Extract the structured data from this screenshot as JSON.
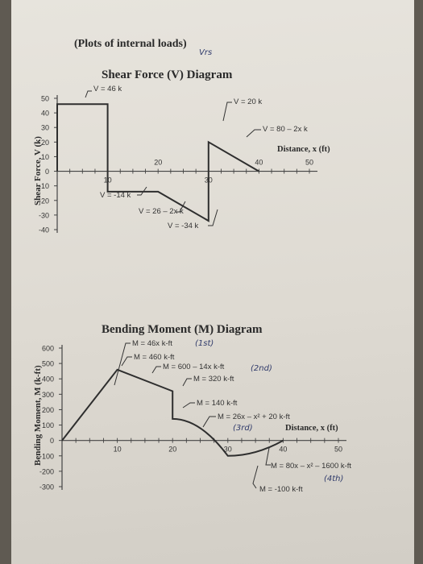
{
  "page": {
    "heading": "(Plots of internal loads)",
    "heading_note": "Vrs",
    "bg_color": "#e4e1da",
    "ink_color": "#333333"
  },
  "shear": {
    "title": "Shear Force (V) Diagram",
    "ylabel": "Shear Force, V (k)",
    "xlabel": "Distance, x (ft)",
    "y_ticks": [
      "50",
      "40",
      "30",
      "20",
      "10",
      "0",
      "-10",
      "-20",
      "-30",
      "-40"
    ],
    "x_ticks": [
      "10",
      "20",
      "30",
      "40",
      "50"
    ],
    "annotations": [
      {
        "key": "v46",
        "text": "V = 46 k"
      },
      {
        "key": "v20",
        "text": "V = 20 k"
      },
      {
        "key": "v80",
        "text": "V = 80 – 2x k"
      },
      {
        "key": "vm14",
        "text": "V = -14 k"
      },
      {
        "key": "v26",
        "text": "V = 26 – 2x k"
      },
      {
        "key": "vm34",
        "text": "V = -34 k"
      }
    ]
  },
  "moment": {
    "title": "Bending Moment (M) Diagram",
    "ylabel": "Bending Moment, M (k-ft)",
    "xlabel": "Distance, x (ft)",
    "y_ticks": [
      "600",
      "500",
      "400",
      "300",
      "200",
      "100",
      "0",
      "-100",
      "-200",
      "-300"
    ],
    "x_ticks": [
      "10",
      "20",
      "30",
      "40",
      "50"
    ],
    "annotations": [
      {
        "key": "m46x",
        "text": "M = 46x k-ft"
      },
      {
        "key": "m460",
        "text": "M = 460 k-ft"
      },
      {
        "key": "m600",
        "text": "M = 600 – 14x k-ft"
      },
      {
        "key": "m320",
        "text": "M = 320 k-ft"
      },
      {
        "key": "m140",
        "text": "M = 140 k-ft"
      },
      {
        "key": "m26x",
        "text": "M = 26x – x² + 20 k-ft"
      },
      {
        "key": "m80x",
        "text": "M = 80x – x² – 1600 k-ft"
      },
      {
        "key": "mm100",
        "text": "M = -100 k-ft"
      }
    ],
    "hand_notes": [
      {
        "key": "n1",
        "text": "(1st)"
      },
      {
        "key": "n2",
        "text": "(2nd)"
      },
      {
        "key": "n3",
        "text": "(3rd)"
      },
      {
        "key": "n4",
        "text": "(4th)"
      }
    ]
  },
  "chart_data": [
    {
      "type": "line",
      "title": "Shear Force (V) Diagram",
      "xlabel": "Distance, x (ft)",
      "ylabel": "Shear Force, V (k)",
      "xlim": [
        0,
        50
      ],
      "ylim": [
        -40,
        50
      ],
      "series": [
        {
          "x": [
            0,
            0,
            10,
            10,
            20,
            30,
            30,
            30,
            40
          ],
          "y": [
            0,
            46,
            46,
            -14,
            -14,
            -34,
            -34,
            20,
            0
          ]
        }
      ]
    },
    {
      "type": "line",
      "title": "Bending Moment (M) Diagram",
      "xlabel": "Distance, x (ft)",
      "ylabel": "Bending Moment, M (k-ft)",
      "xlim": [
        0,
        50
      ],
      "ylim": [
        -300,
        600
      ],
      "series": [
        {
          "x": [
            0,
            10,
            20,
            20,
            30,
            40
          ],
          "y": [
            0,
            460,
            320,
            140,
            -100,
            0
          ]
        }
      ]
    }
  ]
}
